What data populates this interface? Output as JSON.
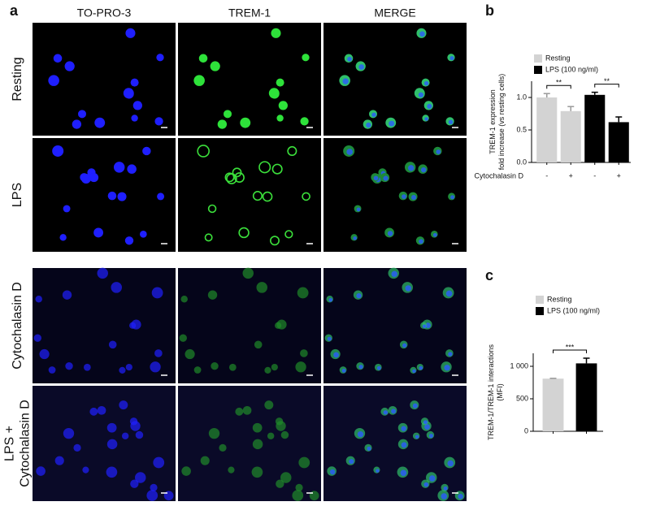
{
  "figure": {
    "panel_labels": [
      "a",
      "b",
      "c"
    ],
    "columns": [
      "TO-PRO-3",
      "TREM-1",
      "MERGE"
    ],
    "rows": [
      [
        "Resting"
      ],
      [
        "LPS"
      ],
      [
        "Cytochalasin D"
      ],
      [
        "LPS +",
        "Cytochalasin D"
      ]
    ]
  },
  "chart_data": [
    {
      "type": "bar",
      "categories": [
        "-",
        "+",
        "-",
        "+"
      ],
      "xlabel": "Cytochalasin D",
      "ylabel": [
        "TREM-1 expression",
        "fold increase (vs resting cells)"
      ],
      "series": [
        {
          "name": "Resting",
          "color": "#d3d3d3",
          "values": [
            1.0,
            0.79,
            null,
            null
          ],
          "errors": [
            0.06,
            0.07,
            null,
            null
          ]
        },
        {
          "name": "LPS (100 ng/ml)",
          "color": "#000000",
          "values": [
            null,
            null,
            1.04,
            0.62
          ],
          "errors": [
            null,
            null,
            0.04,
            0.08
          ]
        }
      ],
      "ylim": [
        0,
        1.25
      ],
      "yticks": [
        {
          "value": 0,
          "label": "0.0"
        },
        0.5,
        {
          "value": 1,
          "label": "1.0"
        }
      ],
      "annotations": [
        "**",
        "**"
      ]
    },
    {
      "type": "bar",
      "categories": [
        null,
        null
      ],
      "ylabel": [
        "TREM-1/TREM-1 interactions",
        "(MFI)"
      ],
      "series": [
        {
          "name": "Resting",
          "color": "#d3d3d3",
          "values": [
            810,
            null
          ],
          "errors": [
            5,
            null
          ]
        },
        {
          "name": "LPS (100 ng/ml)",
          "color": "#000000",
          "values": [
            null,
            1045
          ],
          "errors": [
            null,
            80
          ]
        }
      ],
      "ylim": [
        0,
        1200
      ],
      "yticks": [
        0,
        500,
        {
          "value": 1000,
          "label": "1 000"
        }
      ],
      "annotations": [
        "***"
      ]
    }
  ]
}
